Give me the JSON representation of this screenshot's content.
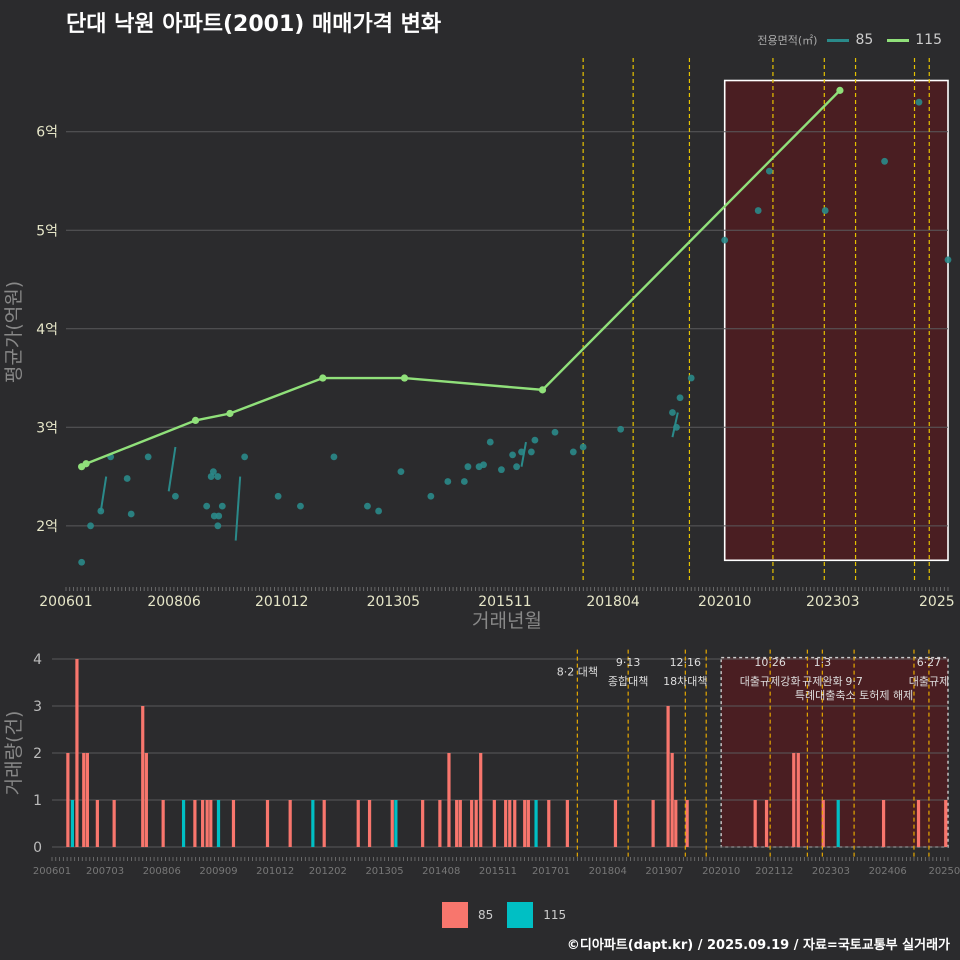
{
  "title": "단대 낙원 아파트(2001) 매매가격 변화",
  "footer": "©디아파트(dapt.kr) / 2025.09.19 / 자료=국토교통부 실거래가",
  "legend_top": {
    "label": "전용면적(㎡)",
    "items": [
      {
        "name": "85",
        "color": "#2a8a8a"
      },
      {
        "name": "115",
        "color": "#90e07a"
      }
    ]
  },
  "legend_bottom": {
    "items": [
      {
        "name": "85",
        "color": "#f8766d"
      },
      {
        "name": "115",
        "color": "#00bfc4"
      }
    ]
  },
  "chart_data": [
    {
      "type": "line",
      "title": "단대 낙원 아파트(2001) 매매가격 변화",
      "xlabel": "거래년월",
      "ylabel": "평균가(억원)",
      "xlim": [
        2006.0,
        2025.75
      ],
      "ylim": [
        1.45,
        6.85
      ],
      "ytick_values": [
        2,
        3,
        4,
        5,
        6
      ],
      "ytick_labels": [
        "2억",
        "3억",
        "4억",
        "5억",
        "6억"
      ],
      "xtick_values": [
        2006.0,
        2008.42,
        2010.83,
        2013.33,
        2015.83,
        2018.25,
        2020.75,
        2023.17,
        2025.5
      ],
      "xtick_labels": [
        "200601",
        "200806",
        "201012",
        "201305",
        "201511",
        "201804",
        "202010",
        "202303",
        "2025"
      ],
      "policy_lines": [
        2017.58,
        2018.7,
        2019.96,
        2021.83,
        2022.98,
        2023.68,
        2025.0,
        2025.33
      ],
      "highlight_box": [
        2020.75,
        1.65,
        2025.75,
        6.52
      ],
      "series": [
        {
          "name": "85",
          "color": "#2a8a8a",
          "x": [
            2006.35,
            2006.55,
            2006.78,
            2007.0,
            2007.37,
            2007.46,
            2007.84,
            2008.45,
            2009.15,
            2009.25,
            2009.3,
            2009.32,
            2009.4,
            2009.4,
            2009.42,
            2009.5,
            2010.0,
            2010.75,
            2011.25,
            2012.0,
            2012.75,
            2013.0,
            2013.5,
            2014.17,
            2014.55,
            2014.92,
            2015.0,
            2015.25,
            2015.35,
            2015.5,
            2015.75,
            2016.0,
            2016.09,
            2016.2,
            2016.42,
            2016.5,
            2016.95,
            2017.36,
            2017.58,
            2018.42,
            2019.58,
            2019.67,
            2019.75,
            2020.0,
            2020.75,
            2021.5,
            2021.75,
            2023.0,
            2024.33,
            2025.1,
            2025.75
          ],
          "y": [
            1.63,
            2.0,
            2.15,
            2.7,
            2.48,
            2.12,
            2.7,
            2.3,
            2.2,
            2.5,
            2.55,
            2.1,
            2.5,
            2.0,
            2.1,
            2.2,
            2.7,
            2.3,
            2.2,
            2.7,
            2.2,
            2.15,
            2.55,
            2.3,
            2.45,
            2.45,
            2.6,
            2.6,
            2.62,
            2.85,
            2.57,
            2.72,
            2.6,
            2.75,
            2.75,
            2.87,
            2.95,
            2.75,
            2.8,
            2.98,
            3.15,
            3.0,
            3.3,
            3.5,
            4.9,
            5.2,
            5.6,
            5.2,
            5.7,
            6.3,
            4.7
          ]
        },
        {
          "name": "115",
          "color": "#90e07a",
          "x": [
            2006.35,
            2006.45,
            2008.9,
            2009.67,
            2011.75,
            2013.58,
            2016.67,
            2023.33
          ],
          "y": [
            2.6,
            2.63,
            3.07,
            3.14,
            3.5,
            3.5,
            3.38,
            6.42
          ]
        }
      ]
    },
    {
      "type": "bar",
      "ylabel": "거래량(건)",
      "ylim": [
        0,
        4.2
      ],
      "ytick_values": [
        0,
        1,
        2,
        3,
        4
      ],
      "ytick_labels": [
        "0",
        "1",
        "2",
        "3",
        "4"
      ],
      "xlim": [
        2006.0,
        2025.75
      ],
      "xtick_values": [
        2006.0,
        2007.17,
        2008.42,
        2009.67,
        2010.92,
        2012.08,
        2013.33,
        2014.58,
        2015.83,
        2017.0,
        2018.25,
        2019.5,
        2020.75,
        2021.92,
        2023.17,
        2024.42,
        2025.67
      ],
      "xtick_labels": [
        "200601",
        "200703",
        "200806",
        "200909",
        "201012",
        "201202",
        "201305",
        "201408",
        "201511",
        "201701",
        "201804",
        "201907",
        "202010",
        "202112",
        "202303",
        "202406",
        "20250"
      ],
      "highlight_box": [
        2020.75,
        0,
        2025.75,
        4.2
      ],
      "policy_lines": [
        2017.58,
        2018.7,
        2019.96,
        2020.42,
        2021.83,
        2022.65,
        2022.98,
        2023.68,
        2025.0,
        2025.33
      ],
      "annotations": [
        {
          "x": 2017.58,
          "y": 3.65,
          "text": "8·2 대책"
        },
        {
          "x": 2018.7,
          "y": 3.85,
          "text": "9·13"
        },
        {
          "x": 2018.7,
          "y": 3.45,
          "text": "종합대책"
        },
        {
          "x": 2019.96,
          "y": 3.85,
          "text": "12·16"
        },
        {
          "x": 2019.96,
          "y": 3.45,
          "text": "18차대책"
        },
        {
          "x": 2021.83,
          "y": 3.85,
          "text": "10·26"
        },
        {
          "x": 2021.83,
          "y": 3.45,
          "text": "대출규제강화"
        },
        {
          "x": 2022.98,
          "y": 3.85,
          "text": "1·3"
        },
        {
          "x": 2022.98,
          "y": 3.45,
          "text": "규제완화"
        },
        {
          "x": 2023.68,
          "y": 3.45,
          "text": "9·7"
        },
        {
          "x": 2023.68,
          "y": 3.15,
          "text": "특례대출축소 토허제 해제"
        },
        {
          "x": 2025.33,
          "y": 3.85,
          "text": "6·27"
        },
        {
          "x": 2025.33,
          "y": 3.45,
          "text": "대출규제"
        }
      ],
      "series": [
        {
          "name": "85",
          "color": "#f8766d",
          "x": [
            2006.35,
            2006.55,
            2006.7,
            2006.78,
            2007.0,
            2007.37,
            2008.0,
            2008.08,
            2008.45,
            2009.15,
            2009.32,
            2009.42,
            2009.5,
            2010.0,
            2010.75,
            2011.25,
            2012.0,
            2012.75,
            2013.0,
            2013.5,
            2014.17,
            2014.55,
            2014.75,
            2014.92,
            2015.0,
            2015.25,
            2015.35,
            2015.45,
            2015.75,
            2016.0,
            2016.09,
            2016.2,
            2016.42,
            2016.5,
            2016.95,
            2017.36,
            2018.42,
            2019.25,
            2019.58,
            2019.67,
            2019.75,
            2020.0,
            2021.5,
            2021.75,
            2022.35,
            2022.45,
            2023.0,
            2024.33,
            2025.1,
            2025.7
          ],
          "values": [
            2,
            4,
            2,
            2,
            1,
            1,
            3,
            2,
            1,
            1,
            1,
            1,
            1,
            1,
            1,
            1,
            1,
            1,
            1,
            1,
            1,
            1,
            2,
            1,
            1,
            1,
            1,
            2,
            1,
            1,
            1,
            1,
            1,
            1,
            1,
            1,
            1,
            1,
            3,
            2,
            1,
            1,
            1,
            1,
            2,
            2,
            1,
            1,
            1,
            1
          ]
        },
        {
          "name": "115",
          "color": "#00bfc4",
          "x": [
            2006.45,
            2008.9,
            2009.67,
            2011.75,
            2013.58,
            2016.67,
            2023.33
          ],
          "values": [
            1,
            1,
            1,
            1,
            1,
            1,
            1
          ]
        }
      ]
    }
  ]
}
